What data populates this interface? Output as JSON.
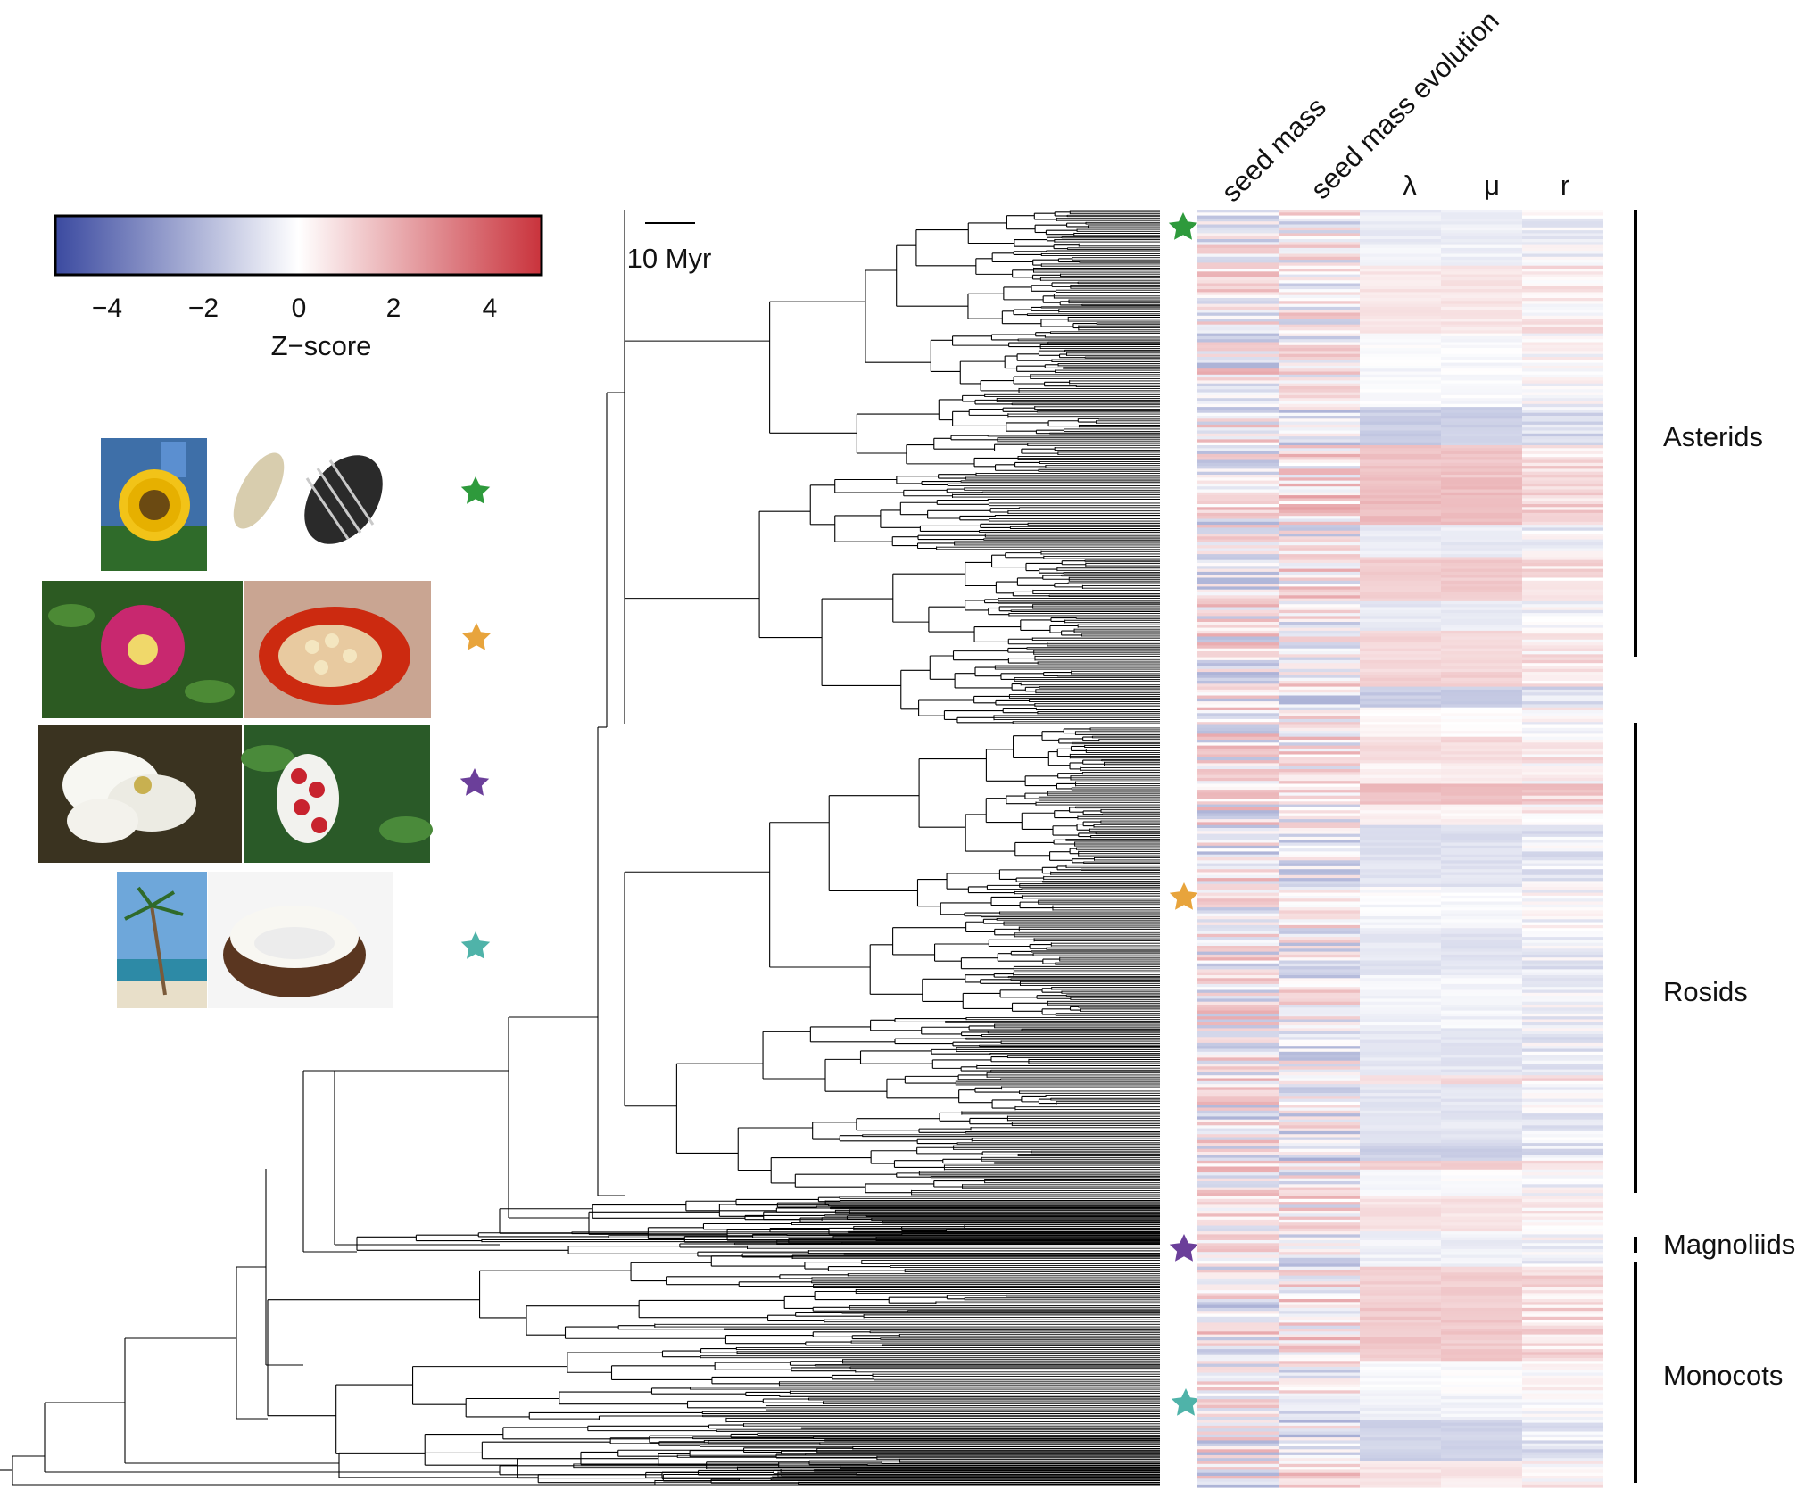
{
  "colorbar": {
    "ticks": [
      "−4",
      "−2",
      "0",
      "2",
      "4"
    ],
    "tick_values": [
      -4,
      -2,
      0,
      2,
      4
    ],
    "range": [
      -5,
      5
    ],
    "label": "Z−score",
    "low_color": "#3b4aa0",
    "mid_color": "#ffffff",
    "high_color": "#c9333c"
  },
  "scale_bar": {
    "label": "10 Myr"
  },
  "heatmap": {
    "columns": [
      "seed mass",
      "seed mass evolution",
      "λ",
      "μ",
      "r"
    ],
    "seed": 17
  },
  "clades": [
    {
      "name": "Asterids"
    },
    {
      "name": "Rosids"
    },
    {
      "name": "Magnoliids"
    },
    {
      "name": "Monocots"
    }
  ],
  "example_taxa": [
    {
      "star_color": "#2e9a3c",
      "photo": "sunflower-and-seeds"
    },
    {
      "star_color": "#e8a43c",
      "photo": "rose-and-hip-seeds"
    },
    {
      "star_color": "#6b3f9a",
      "photo": "magnolia-and-seeds"
    },
    {
      "star_color": "#4fb3a9",
      "photo": "palm-and-coconut"
    }
  ],
  "star_colors": {
    "green": "#2e9a3c",
    "orange": "#e8a43c",
    "purple": "#6b3f9a",
    "teal": "#4fb3a9"
  }
}
